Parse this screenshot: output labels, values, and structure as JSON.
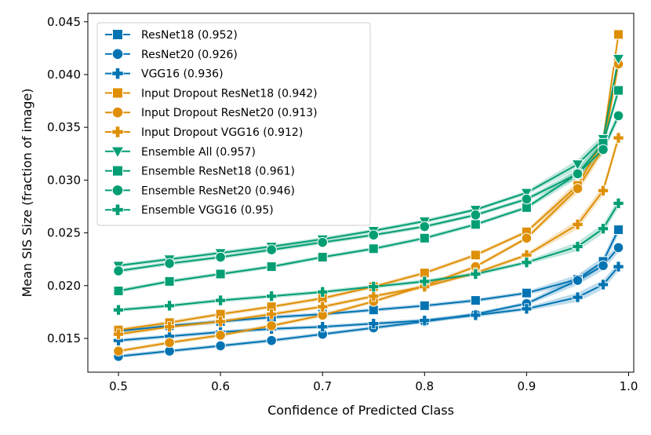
{
  "chart_data": {
    "type": "line",
    "title": "",
    "xlabel": "Confidence of Predicted Class",
    "ylabel": "Mean SIS Size (fraction of image)",
    "xlim": [
      0.47,
      1.005
    ],
    "ylim": [
      0.0118,
      0.0458
    ],
    "xticks": [
      0.5,
      0.6,
      0.7,
      0.8,
      0.9,
      1.0
    ],
    "xtick_labels": [
      "0.5",
      "0.6",
      "0.7",
      "0.8",
      "0.9",
      "1.0"
    ],
    "yticks": [
      0.015,
      0.02,
      0.025,
      0.03,
      0.035,
      0.04,
      0.045
    ],
    "ytick_labels": [
      "0.015",
      "0.020",
      "0.025",
      "0.030",
      "0.035",
      "0.040",
      "0.045"
    ],
    "grid": false,
    "legend_position": "top-left",
    "x": [
      0.5,
      0.55,
      0.6,
      0.65,
      0.7,
      0.75,
      0.8,
      0.85,
      0.9,
      0.95,
      0.975,
      0.99
    ],
    "series": [
      {
        "name": "ResNet18 (0.952)",
        "color": "#0173b2",
        "marker": "square",
        "values": [
          0.0157,
          0.0162,
          0.0166,
          0.017,
          0.0173,
          0.0177,
          0.0181,
          0.0186,
          0.0193,
          0.0206,
          0.0223,
          0.0253
        ]
      },
      {
        "name": "ResNet20 (0.926)",
        "color": "#0173b2",
        "marker": "circle",
        "values": [
          0.0133,
          0.0138,
          0.0143,
          0.0148,
          0.0154,
          0.016,
          0.0166,
          0.0173,
          0.0183,
          0.0205,
          0.0219,
          0.0236
        ]
      },
      {
        "name": "VGG16 (0.936)",
        "color": "#0173b2",
        "marker": "plus",
        "values": [
          0.0148,
          0.0152,
          0.0156,
          0.0159,
          0.0161,
          0.0164,
          0.0167,
          0.0172,
          0.0178,
          0.0189,
          0.0201,
          0.0218
        ]
      },
      {
        "name": "Input Dropout ResNet18  (0.942)",
        "color": "#de8f05",
        "marker": "square",
        "values": [
          0.0158,
          0.0165,
          0.0173,
          0.018,
          0.0188,
          0.0199,
          0.0212,
          0.0229,
          0.0251,
          0.0295,
          0.0338,
          0.0438
        ]
      },
      {
        "name": "Input Dropout ResNet20  (0.913)",
        "color": "#de8f05",
        "marker": "circle",
        "values": [
          0.0138,
          0.0146,
          0.0153,
          0.0162,
          0.0172,
          0.0185,
          0.02,
          0.0218,
          0.0245,
          0.0292,
          0.033,
          0.041
        ]
      },
      {
        "name": "Input Dropout VGG16  (0.912)",
        "color": "#de8f05",
        "marker": "plus",
        "values": [
          0.0154,
          0.0161,
          0.0166,
          0.0173,
          0.018,
          0.019,
          0.0199,
          0.0212,
          0.0229,
          0.0258,
          0.029,
          0.034
        ]
      },
      {
        "name": "Ensemble All (0.957)",
        "color": "#029e73",
        "marker": "triangle-down",
        "values": [
          0.0219,
          0.0225,
          0.0231,
          0.0237,
          0.0244,
          0.0252,
          0.0261,
          0.0272,
          0.0288,
          0.0315,
          0.0339,
          0.0415
        ]
      },
      {
        "name": "Ensemble ResNet18 (0.961)",
        "color": "#029e73",
        "marker": "square",
        "values": [
          0.0195,
          0.0204,
          0.0211,
          0.0218,
          0.0227,
          0.0235,
          0.0245,
          0.0258,
          0.0274,
          0.0306,
          0.0335,
          0.0385
        ]
      },
      {
        "name": "Ensemble ResNet20 (0.946)",
        "color": "#029e73",
        "marker": "circle",
        "values": [
          0.0214,
          0.0221,
          0.0227,
          0.0234,
          0.0241,
          0.0248,
          0.0256,
          0.0267,
          0.0282,
          0.0306,
          0.0329,
          0.0361
        ]
      },
      {
        "name": "Ensemble VGG16 (0.95)",
        "color": "#029e73",
        "marker": "plus",
        "values": [
          0.0177,
          0.0181,
          0.0186,
          0.019,
          0.0194,
          0.0199,
          0.0204,
          0.0211,
          0.0222,
          0.0237,
          0.0254,
          0.0278
        ]
      }
    ]
  }
}
